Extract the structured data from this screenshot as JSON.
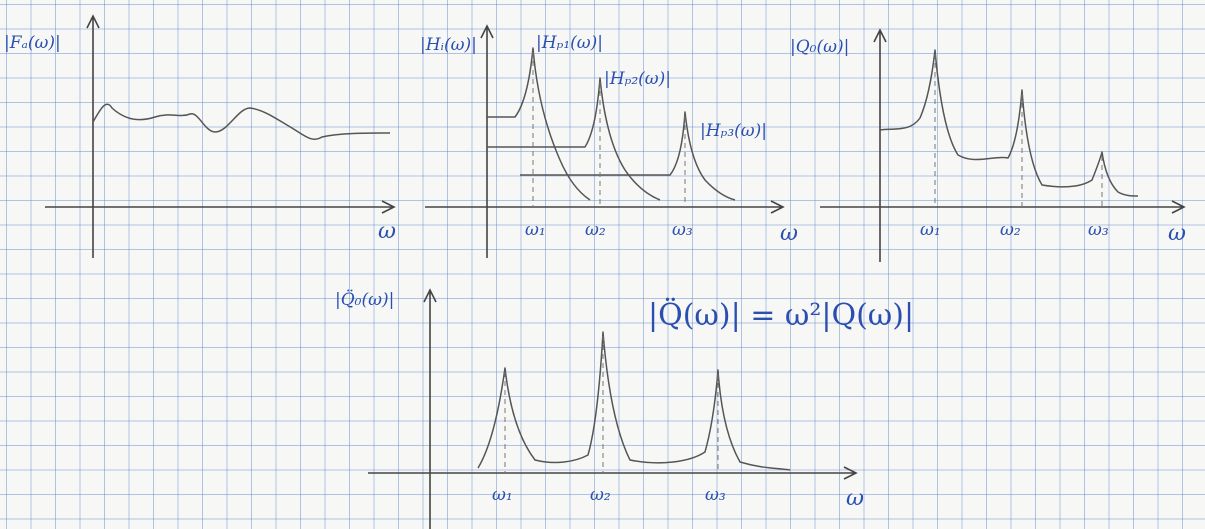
{
  "panels": [
    {
      "y_label": "|Fₐ(ω)|",
      "x_label": "ω"
    },
    {
      "y_label": "|Hᵢ(ω)|",
      "curve_labels": [
        "|Hₚ₁(ω)|",
        "|Hₚ₂(ω)|",
        "|Hₚ₃(ω)|"
      ],
      "x_ticks": [
        "ω₁",
        "ω₂",
        "ω₃"
      ],
      "x_label": "ω"
    },
    {
      "y_label": "|Q₀(ω)|",
      "x_ticks": [
        "ω₁",
        "ω₂",
        "ω₃"
      ],
      "x_label": "ω"
    },
    {
      "y_label": "|Q̈₀(ω)|",
      "x_ticks": [
        "ω₁",
        "ω₂",
        "ω₃"
      ],
      "x_label": "ω",
      "equation": "|Q̈(ω)| = ω²|Q(ω)|"
    }
  ]
}
